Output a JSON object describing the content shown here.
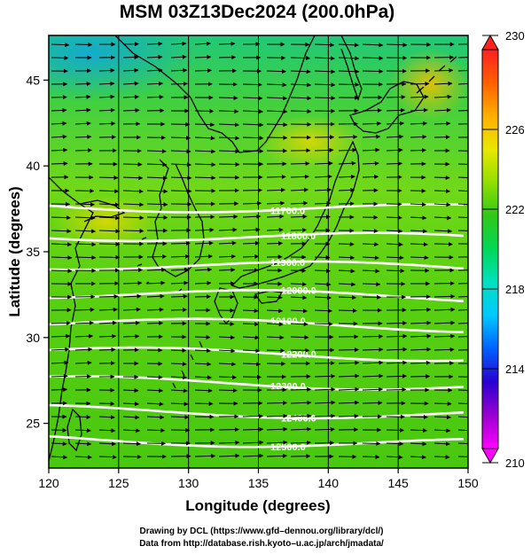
{
  "title": "MSM 03Z13Dec2024 (200.0hPa)",
  "x_axis": {
    "label": "Longitude (degrees)",
    "ticks": [
      120,
      125,
      130,
      135,
      140,
      145,
      150
    ],
    "range": [
      120,
      150
    ]
  },
  "y_axis": {
    "label": "Latitude  (degrees)",
    "ticks": [
      25,
      30,
      35,
      40,
      45
    ],
    "range": [
      22.4,
      47.6
    ]
  },
  "colorbar": {
    "ticks": [
      210,
      214,
      218,
      222,
      226,
      230
    ],
    "range": [
      210,
      230
    ],
    "colors": [
      "#ff00ff",
      "#9a00d0",
      "#2a00d0",
      "#0060ff",
      "#00c8ff",
      "#00e0c0",
      "#00d858",
      "#30c818",
      "#90e000",
      "#e8e800",
      "#ffb000",
      "#ff6000",
      "#ff2020"
    ]
  },
  "contours": {
    "color": "#ffffff",
    "labels": [
      "11700.0",
      "11800.0",
      "11900.0",
      "12000.0",
      "12100.0",
      "12200.0",
      "12300.0",
      "12400.0",
      "12500.0"
    ]
  },
  "wind": {
    "direction": "west-to-east",
    "arrow_color": "#000000"
  },
  "footer": {
    "line1": "Drawing by DCL (https://www.gfd–dennou.org/library/dcl/)",
    "line2": "Data from http://database.rish.kyoto–u.ac.jp/arch/jmadata/"
  }
}
